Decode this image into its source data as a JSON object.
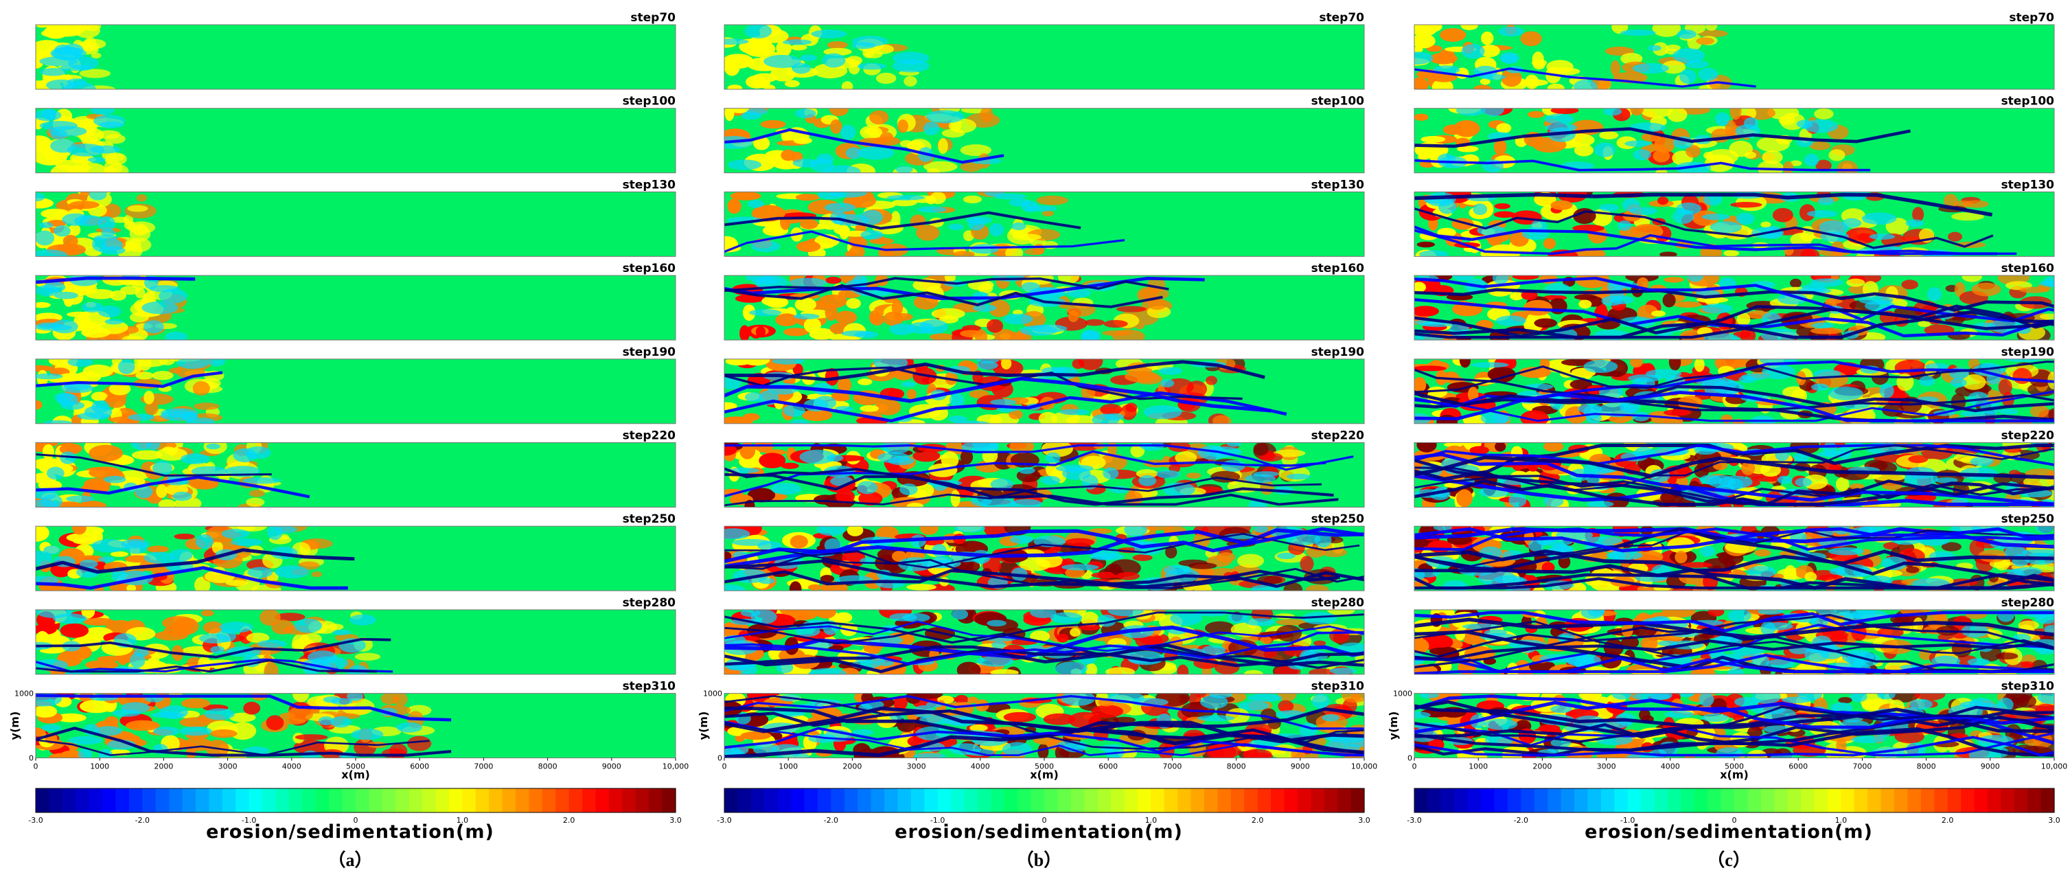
{
  "panels": [
    {
      "caption": "（a）",
      "density": [
        0.02,
        0.04,
        0.08,
        0.12,
        0.16,
        0.2,
        0.24,
        0.28,
        0.32
      ],
      "reach": [
        0.1,
        0.13,
        0.17,
        0.22,
        0.29,
        0.36,
        0.44,
        0.52,
        0.6
      ],
      "seed": 11
    },
    {
      "caption": "（b）",
      "density": [
        0.06,
        0.13,
        0.22,
        0.32,
        0.42,
        0.52,
        0.62,
        0.7,
        0.78
      ],
      "reach": [
        0.3,
        0.42,
        0.55,
        0.68,
        0.8,
        0.9,
        0.96,
        1.0,
        1.0
      ],
      "seed": 29
    },
    {
      "caption": "（c）",
      "density": [
        0.14,
        0.26,
        0.42,
        0.58,
        0.72,
        0.82,
        0.88,
        0.92,
        0.95
      ],
      "reach": [
        0.48,
        0.7,
        0.88,
        1.0,
        1.0,
        1.0,
        1.0,
        1.0,
        1.0
      ],
      "seed": 47
    }
  ],
  "steps": [
    "step70",
    "step100",
    "step130",
    "step160",
    "step190",
    "step220",
    "step250",
    "step280",
    "step310"
  ],
  "axes": {
    "xlabel": "x(m)",
    "ylabel": "y(m)",
    "xticks": [
      "0",
      "1000",
      "2000",
      "3000",
      "4000",
      "5000",
      "6000",
      "7000",
      "8000",
      "9000",
      "10,000"
    ],
    "yticks": [
      "0",
      "1000"
    ]
  },
  "colorbar": {
    "title": "erosion/sedimentation(m)",
    "ticks": [
      "-3.0",
      "-2.0",
      "-1.0",
      "0",
      "1.0",
      "2.0",
      "3.0"
    ],
    "min": -3.0,
    "max": 3.0,
    "colors": [
      "#00007f",
      "#0000ff",
      "#0080ff",
      "#00ffff",
      "#00ff66",
      "#80ff40",
      "#ffff00",
      "#ff8000",
      "#ff0000",
      "#7f0000"
    ]
  }
}
